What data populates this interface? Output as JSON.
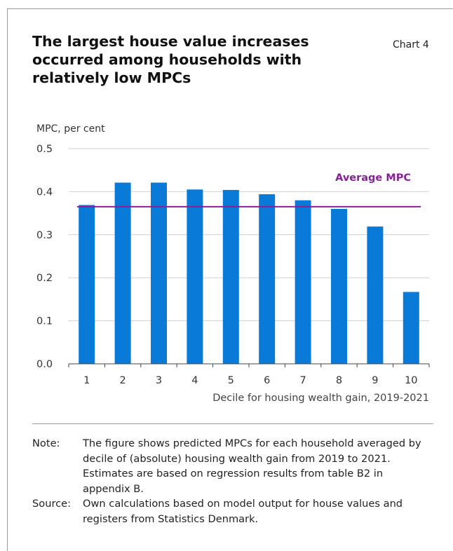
{
  "header": {
    "title": "The largest house value increases occurred among households with relatively low MPCs",
    "chart_number": "Chart 4"
  },
  "chart_data": {
    "type": "bar",
    "title": "The largest house value increases occurred among households with relatively low MPCs",
    "ylabel": "MPC, per cent",
    "xlabel": "Decile for housing wealth gain, 2019-2021",
    "categories": [
      "1",
      "2",
      "3",
      "4",
      "5",
      "6",
      "7",
      "8",
      "9",
      "10"
    ],
    "values": [
      0.369,
      0.421,
      0.421,
      0.405,
      0.404,
      0.394,
      0.38,
      0.36,
      0.319,
      0.167
    ],
    "ylim": [
      0,
      0.5
    ],
    "yticks": [
      "0.0",
      "0.1",
      "0.2",
      "0.3",
      "0.4",
      "0.5"
    ],
    "grid": true,
    "bar_color": "#0a7ad8",
    "average": {
      "label": "Average MPC",
      "value": 0.365,
      "color": "#8b1f9a"
    }
  },
  "notes": {
    "note_label": "Note:",
    "note_text": "The figure shows predicted MPCs for each household averaged by decile of (absolute) housing wealth gain from 2019 to 2021. Estimates are based on regression results from table B2 in appendix B.",
    "source_label": "Source:",
    "source_text": "Own calculations based on model output for house values and registers from Statistics Denmark."
  }
}
